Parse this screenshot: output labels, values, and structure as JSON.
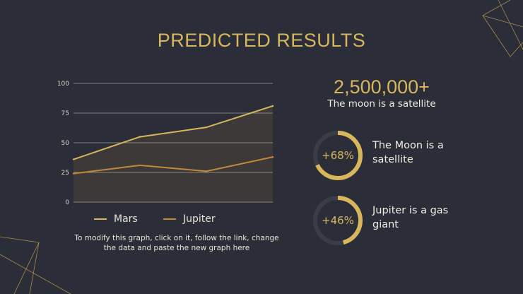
{
  "slide": {
    "title": "PREDICTED RESULTS"
  },
  "chart_data": {
    "type": "area",
    "categories": [
      "",
      "",
      "",
      ""
    ],
    "series": [
      {
        "name": "Mars",
        "values": [
          36,
          55,
          63,
          81
        ]
      },
      {
        "name": "Jupiter",
        "values": [
          24,
          31,
          26,
          38
        ]
      }
    ],
    "ylim": [
      0,
      100
    ],
    "yticks": [
      "0",
      "25",
      "50",
      "75",
      "100"
    ],
    "grid": true,
    "legend_position": "bottom",
    "colors": {
      "Mars": "#d8b65c",
      "Jupiter": "#c4883c",
      "area": "#3d3a38",
      "grid": "#c9c5b8"
    }
  },
  "note": {
    "line1": "To modify this graph, click on it, follow the link, change",
    "line2": "the data and paste the new graph here"
  },
  "highlight": {
    "value": "2,500,000+",
    "caption": "The moon is a satellite"
  },
  "stats": [
    {
      "percent": "+68%",
      "fill": 0.68,
      "line1": "The Moon is a",
      "line2": "satellite"
    },
    {
      "percent": "+46%",
      "fill": 0.46,
      "line1": "Jupiter is a gas",
      "line2": "giant"
    }
  ],
  "colors": {
    "background": "#2b2d39",
    "accent": "#d8b65c",
    "text": "#f0ece2"
  }
}
